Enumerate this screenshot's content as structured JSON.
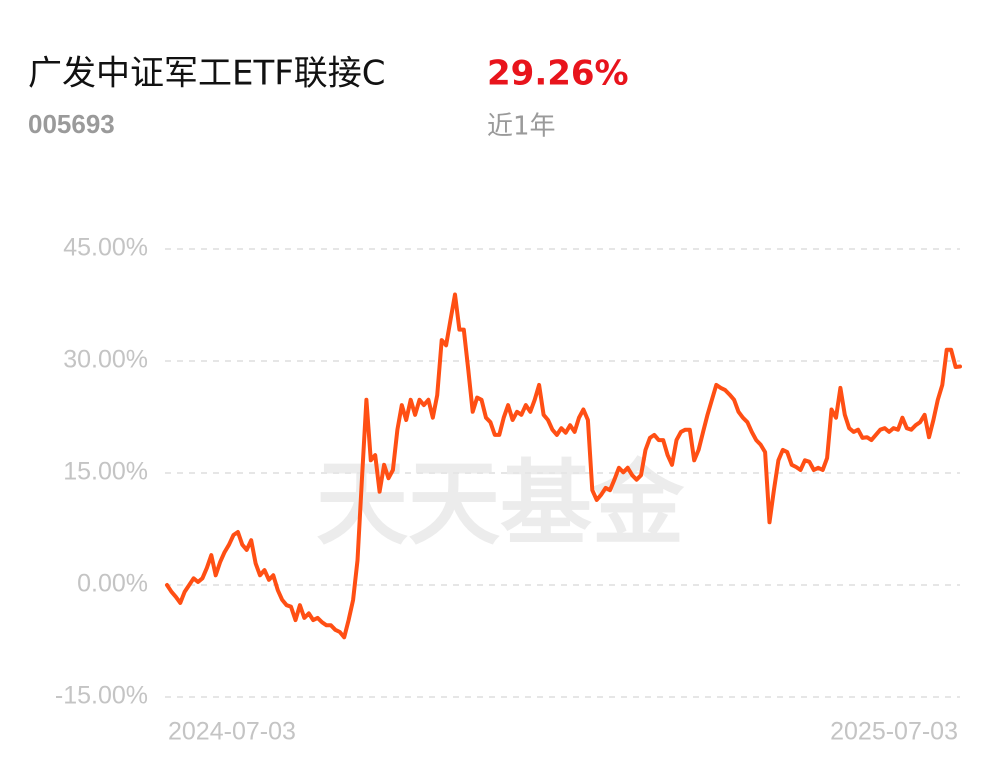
{
  "header": {
    "title": "广发中证军工ETF联接C",
    "return": "29.26%",
    "code": "005693",
    "period": "近1年"
  },
  "chart_data": {
    "type": "line",
    "color": "#ff4f14",
    "grid": true,
    "watermark": "天天基金",
    "ylim": [
      -15,
      45
    ],
    "yticks": [
      {
        "value": -15,
        "label": "-15.00%"
      },
      {
        "value": 0,
        "label": "0.00%"
      },
      {
        "value": 15,
        "label": "15.00%"
      },
      {
        "value": 30,
        "label": "30.00%"
      },
      {
        "value": 45,
        "label": "45.00%"
      }
    ],
    "categories": [
      "2024-07-03",
      null,
      null,
      null,
      null,
      null,
      null,
      null,
      null,
      null,
      null,
      null,
      null,
      null,
      null,
      null,
      null,
      null,
      null,
      null,
      null,
      null,
      null,
      null,
      null,
      null,
      null,
      null,
      null,
      null,
      null,
      null,
      null,
      null,
      null,
      null,
      null,
      null,
      null,
      null,
      null,
      null,
      null,
      null,
      null,
      null,
      null,
      null,
      null,
      null,
      null,
      null,
      null,
      null,
      null,
      null,
      null,
      null,
      null,
      null,
      null,
      null,
      null,
      null,
      null,
      null,
      null,
      null,
      null,
      null,
      null,
      null,
      null,
      null,
      null,
      null,
      null,
      null,
      null,
      null,
      null,
      null,
      null,
      null,
      null,
      null,
      null,
      null,
      null,
      null,
      null,
      null,
      null,
      null,
      null,
      null,
      null,
      null,
      null,
      null,
      null,
      null,
      null,
      null,
      null,
      null,
      null,
      null,
      null,
      null,
      null,
      null,
      null,
      null,
      null,
      null,
      null,
      null,
      null,
      null,
      null,
      null,
      null,
      null,
      null,
      null,
      null,
      null,
      null,
      null,
      null,
      null,
      null,
      null,
      null,
      null,
      null,
      null,
      null,
      null,
      null,
      null,
      null,
      null,
      null,
      null,
      null,
      null,
      null,
      null,
      null,
      null,
      null,
      null,
      null,
      null,
      null,
      null,
      null,
      null,
      null,
      null,
      null,
      null,
      null,
      null,
      null,
      null,
      null,
      null,
      null,
      null,
      null,
      null,
      null,
      null,
      null,
      null,
      null,
      "2025-07-03"
    ],
    "values": [
      0,
      -0.9,
      -1.6,
      -2.4,
      -0.9,
      0,
      0.9,
      0.4,
      0.9,
      2.3,
      4.0,
      1.3,
      3.1,
      4.4,
      5.4,
      6.7,
      7.1,
      5.4,
      4.7,
      6.0,
      2.9,
      1.3,
      2.0,
      0.7,
      1.3,
      -0.7,
      -2.0,
      -2.7,
      -2.9,
      -4.7,
      -2.7,
      -4.4,
      -3.8,
      -4.7,
      -4.4,
      -5.0,
      -5.4,
      -5.4,
      -6.0,
      -6.3,
      -7.0,
      -4.7,
      -2.0,
      3.3,
      14.1,
      24.8,
      16.7,
      17.4,
      12.5,
      16.1,
      14.3,
      15.4,
      20.8,
      24.1,
      22.1,
      24.8,
      22.8,
      24.8,
      24.1,
      24.8,
      22.4,
      25.4,
      32.8,
      32.1,
      35.5,
      38.9,
      34.2,
      34.2,
      28.8,
      23.2,
      25.1,
      24.8,
      22.4,
      21.8,
      20.1,
      20.1,
      22.4,
      24.1,
      22.1,
      23.2,
      22.8,
      24.1,
      23.2,
      24.8,
      26.8,
      22.8,
      22.1,
      20.8,
      20.1,
      21.0,
      20.4,
      21.4,
      20.5,
      22.4,
      23.5,
      22.1,
      12.7,
      11.4,
      12.1,
      13.0,
      12.7,
      14.1,
      15.7,
      15.1,
      15.7,
      14.7,
      14.1,
      14.7,
      18.1,
      19.7,
      20.1,
      19.4,
      19.4,
      17.4,
      16.1,
      19.4,
      20.5,
      20.8,
      20.8,
      16.7,
      18.1,
      20.5,
      22.8,
      24.8,
      26.8,
      26.4,
      26.1,
      25.5,
      24.8,
      23.2,
      22.4,
      21.8,
      20.5,
      19.4,
      18.8,
      17.8,
      8.4,
      12.7,
      16.7,
      18.1,
      17.8,
      16.1,
      15.8,
      15.4,
      16.7,
      16.5,
      15.4,
      15.7,
      15.4,
      17.0,
      23.5,
      22.4,
      26.4,
      22.8,
      21.0,
      20.5,
      20.8,
      19.7,
      19.8,
      19.4,
      20.1,
      20.8,
      21.0,
      20.5,
      21.0,
      20.8,
      22.4,
      21.0,
      20.8,
      21.4,
      21.8,
      22.8,
      19.8,
      22.1,
      24.8,
      26.8,
      31.5,
      31.5,
      29.2,
      29.26
    ]
  }
}
